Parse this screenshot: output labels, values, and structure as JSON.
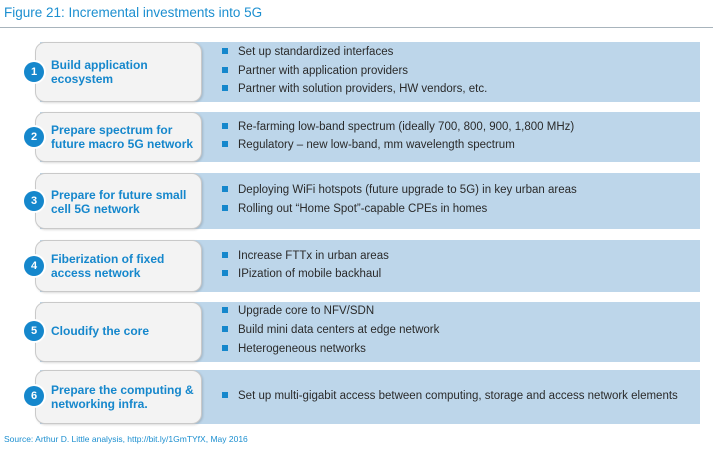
{
  "figure_title": "Figure 21: Incremental investments into 5G",
  "colors": {
    "accent": "#1587cc",
    "band": "#bdd6ea",
    "step_box": "#f3f3f3",
    "text": "#2a2a2a"
  },
  "steps": [
    {
      "number": "1",
      "label": "Build application ecosystem",
      "bullets": [
        "Set up standardized interfaces",
        "Partner with application providers",
        "Partner with solution providers, HW vendors, etc."
      ]
    },
    {
      "number": "2",
      "label": "Prepare spectrum for future macro 5G network",
      "bullets": [
        "Re-farming low-band spectrum (ideally 700, 800, 900, 1,800 MHz)",
        "Regulatory – new low-band, mm wavelength spectrum"
      ]
    },
    {
      "number": "3",
      "label": "Prepare for future small cell 5G network",
      "bullets": [
        "Deploying WiFi hotspots (future upgrade to 5G) in key urban areas",
        "Rolling out “Home Spot”-capable CPEs in homes"
      ]
    },
    {
      "number": "4",
      "label": "Fiberization of fixed access network",
      "bullets": [
        "Increase FTTx in urban areas",
        "IPization of mobile backhaul"
      ]
    },
    {
      "number": "5",
      "label": "Cloudify the core",
      "bullets": [
        "Upgrade core to NFV/SDN",
        "Build mini data centers at edge network",
        "Heterogeneous networks"
      ]
    },
    {
      "number": "6",
      "label": "Prepare the computing & networking infra.",
      "bullets": [
        "Set up multi-gigabit access between computing, storage and access network elements"
      ]
    }
  ],
  "source": "Source: Arthur D. Little analysis, http://bit.ly/1GmTYfX, May 2016"
}
